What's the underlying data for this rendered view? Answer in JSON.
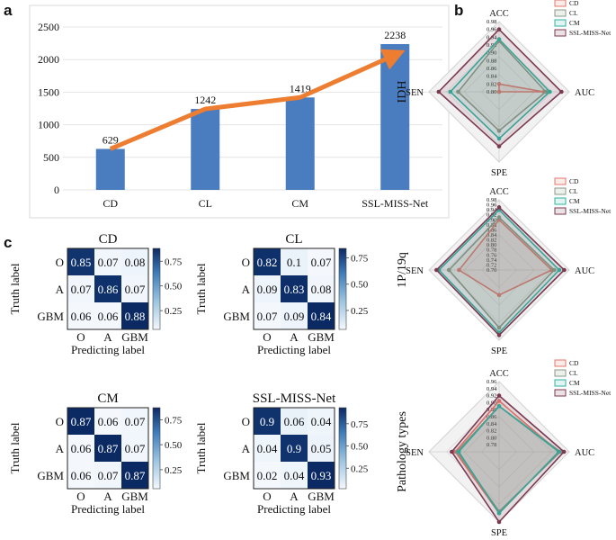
{
  "panel_letters": {
    "a": "a",
    "b": "b",
    "c": "c"
  },
  "colors": {
    "bar": "#4a7cc0",
    "trend_arrow": "#ed7d31",
    "CD": "#e4776d",
    "CL": "#8b9a85",
    "CM": "#2fb3a0",
    "SSL-MISS-Net": "#7b3a52",
    "radar_fill": "#c9c9c9"
  },
  "chart_data": [
    {
      "id": "bar",
      "type": "bar",
      "categories": [
        "CD",
        "CL",
        "CM",
        "SSL-MISS-Net"
      ],
      "values": [
        629,
        1242,
        1419,
        2238
      ],
      "value_labels": [
        "629",
        "1242",
        "1419",
        "2238"
      ],
      "yticks": [
        0,
        500,
        1000,
        1500,
        2000,
        2500
      ],
      "ytick_labels": [
        "0",
        "500",
        "1000",
        "1500",
        "2000",
        "2500"
      ],
      "ylim": [
        0,
        2500
      ],
      "title": "",
      "xlabel": "",
      "ylabel": "",
      "trend_arrow": true
    },
    {
      "id": "radar",
      "type": "radar",
      "axes": [
        "ACC",
        "AUC",
        "SPE",
        "SEN"
      ],
      "legend": [
        "CD",
        "CL",
        "CM",
        "SSL-MISS-Net"
      ],
      "charts": [
        {
          "title": "IDH",
          "rlim": [
            0.8,
            0.98
          ],
          "ticks": [
            "0.98",
            "0.96",
            "0.94",
            "0.92",
            "0.90",
            "0.88",
            "0.86",
            "0.84",
            "0.82",
            "0.80"
          ],
          "series": [
            {
              "name": "CD",
              "values": [
                0.82,
                0.915,
                0.8,
                0.8
              ]
            },
            {
              "name": "CL",
              "values": [
                0.93,
                0.92,
                0.9,
                0.905
              ]
            },
            {
              "name": "CM",
              "values": [
                0.935,
                0.93,
                0.92,
                0.925
              ]
            },
            {
              "name": "SSL-MISS-Net",
              "values": [
                0.96,
                0.96,
                0.94,
                0.955
              ]
            }
          ]
        },
        {
          "title": "1P/19q",
          "rlim": [
            0.7,
            0.98
          ],
          "ticks": [
            "0.98",
            "0.96",
            "0.94",
            "0.92",
            "0.90",
            "0.88",
            "0.86",
            "0.84",
            "0.82",
            "0.80",
            "0.78",
            "0.76",
            "0.74",
            "0.72",
            "0.70"
          ],
          "series": [
            {
              "name": "CD",
              "values": [
                0.9,
                0.91,
                0.8,
                0.86
              ]
            },
            {
              "name": "CL",
              "values": [
                0.91,
                0.92,
                0.93,
                0.9
              ]
            },
            {
              "name": "CM",
              "values": [
                0.94,
                0.94,
                0.95,
                0.94
              ]
            },
            {
              "name": "SSL-MISS-Net",
              "values": [
                0.95,
                0.96,
                0.96,
                0.95
              ]
            }
          ]
        },
        {
          "title": "Pathology types",
          "rlim": [
            0.76,
            0.96
          ],
          "ticks": [
            "0.96",
            "0.94",
            "0.92",
            "0.90",
            "0.88",
            "0.86",
            "0.84",
            "0.82",
            "0.80",
            "0.78"
          ],
          "series": [
            {
              "name": "CD",
              "values": [
                0.905,
                0.93,
                0.935,
                0.885
              ]
            },
            {
              "name": "CL",
              "values": [
                0.89,
                0.935,
                0.93,
                0.88
              ]
            },
            {
              "name": "CM",
              "values": [
                0.89,
                0.93,
                0.935,
                0.875
              ]
            },
            {
              "name": "SSL-MISS-Net",
              "values": [
                0.92,
                0.945,
                0.96,
                0.895
              ]
            }
          ]
        }
      ]
    },
    {
      "id": "confusion",
      "type": "heatmap",
      "row_labels": [
        "O",
        "A",
        "GBM"
      ],
      "col_labels": [
        "O",
        "A",
        "GBM"
      ],
      "ylabel": "Truth label",
      "xlabel": "Predicting label",
      "matrices": [
        {
          "title": "CD",
          "cells": [
            [
              "0.85",
              "0.07",
              "0.08"
            ],
            [
              "0.07",
              "0.86",
              "0.07"
            ],
            [
              "0.06",
              "0.06",
              "0.88"
            ]
          ],
          "colorbar_ticks": [
            "0.75",
            "0.50",
            "0.25"
          ],
          "colorbar_range": [
            0.06,
            0.88
          ]
        },
        {
          "title": "CL",
          "cells": [
            [
              "0.82",
              "0.1",
              "0.07"
            ],
            [
              "0.09",
              "0.83",
              "0.08"
            ],
            [
              "0.07",
              "0.09",
              "0.84"
            ]
          ],
          "colorbar_ticks": [
            "0.75",
            "0.50",
            "0.25"
          ],
          "colorbar_range": [
            0.07,
            0.84
          ]
        },
        {
          "title": "CM",
          "cells": [
            [
              "0.87",
              "0.06",
              "0.07"
            ],
            [
              "0.06",
              "0.87",
              "0.07"
            ],
            [
              "0.06",
              "0.07",
              "0.87"
            ]
          ],
          "colorbar_ticks": [
            "0.75",
            "0.50",
            "0.25"
          ],
          "colorbar_range": [
            0.06,
            0.87
          ]
        },
        {
          "title": "SSL-MISS-Net",
          "cells": [
            [
              "0.9",
              "0.06",
              "0.04"
            ],
            [
              "0.04",
              "0.9",
              "0.05"
            ],
            [
              "0.02",
              "0.04",
              "0.93"
            ]
          ],
          "colorbar_ticks": [
            "0.75",
            "0.50",
            "0.25"
          ],
          "colorbar_range": [
            0.02,
            0.93
          ]
        }
      ]
    }
  ]
}
